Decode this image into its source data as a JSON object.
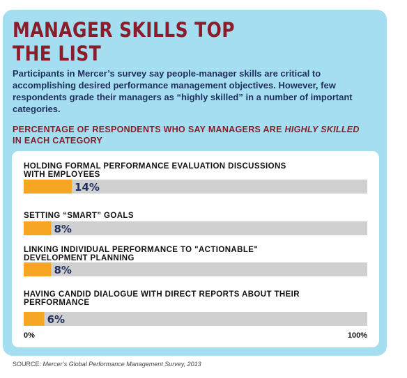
{
  "title_lines": [
    "MANAGER SKILLS TOP",
    "THE LIST"
  ],
  "intro": "Participants in Mercer’s survey say people-manager skills are critical to accomplishing desired performance management objectives. However, few respondents grade their managers as “highly skilled” in a number of important categories.",
  "subhead": {
    "part1": "PERCENTAGE OF RESPONDENTS WHO SAY MANAGERS ARE ",
    "emphasis": "HIGHLY SKILLED",
    "part2": "IN EACH CATEGORY"
  },
  "source": {
    "label": "SOURCE: ",
    "text": "Mercer’s Global Performance Management Survey, 2013"
  },
  "colors": {
    "card_bg": "#a6def1",
    "title": "#8b1c2a",
    "text_dark_blue": "#1e2f5e",
    "bar_fill": "#f6a623",
    "bar_track": "#d0d0d0"
  },
  "chart_data": {
    "type": "bar",
    "orientation": "horizontal",
    "categories": [
      [
        "HOLDING FORMAL PERFORMANCE EVALUATION DISCUSSIONS",
        "WITH EMPLOYEES"
      ],
      [
        "SETTING “SMART” GOALS"
      ],
      [
        "LINKING INDIVIDUAL PERFORMANCE TO \"ACTIONABLE\"",
        "DEVELOPMENT PLANNING"
      ],
      [
        "HAVING CANDID DIALOGUE WITH DIRECT REPORTS ABOUT THEIR",
        "PERFORMANCE"
      ]
    ],
    "values": [
      14,
      8,
      8,
      6
    ],
    "value_labels": [
      "14%",
      "8%",
      "8%",
      "6%"
    ],
    "xlim": [
      0,
      100
    ],
    "axis_labels": [
      "0%",
      "100%"
    ],
    "grid": false
  }
}
